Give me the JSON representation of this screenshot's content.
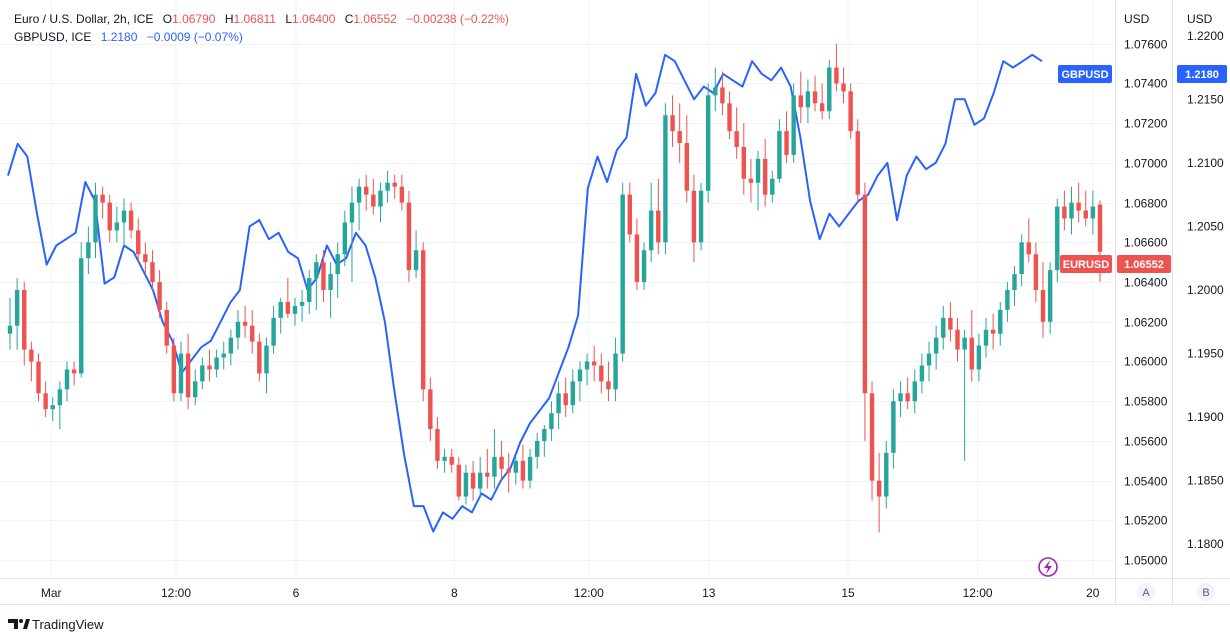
{
  "legend": {
    "main": {
      "name": "Euro / U.S. Dollar, 2h, ICE",
      "o_label": "O",
      "o": "1.06790",
      "h_label": "H",
      "h": "1.06811",
      "l_label": "L",
      "l": "1.06400",
      "c_label": "C",
      "c": "1.06552",
      "change": "−0.00238 (−0.22%)"
    },
    "compare": {
      "name": "GBPUSD, ICE",
      "value": "1.2180",
      "change": "−0.0009 (−0.07%)"
    }
  },
  "axes": {
    "left_header": "USD",
    "right_header": "USD",
    "left_ticks": [
      "1.07600",
      "1.07400",
      "1.07200",
      "1.07000",
      "1.06800",
      "1.06600",
      "1.06400",
      "1.06200",
      "1.06000",
      "1.05800",
      "1.05600",
      "1.05400",
      "1.05200",
      "1.05000"
    ],
    "right_ticks": [
      "1.2200",
      "1.2150",
      "1.2100",
      "1.2050",
      "1.2000",
      "1.1950",
      "1.1900",
      "1.1850",
      "1.1800"
    ],
    "time_ticks": [
      "Mar",
      "12:00",
      "6",
      "8",
      "12:00",
      "13",
      "15",
      "12:00",
      "20"
    ]
  },
  "tags": {
    "gbpusd_label": "GBPUSD",
    "gbpusd_value": "1.2180",
    "eurusd_label": "EURUSD",
    "eurusd_value": "1.06552"
  },
  "buttons": {
    "a": "A",
    "b": "B"
  },
  "brand": "TradingView",
  "colors": {
    "up": "#26a69a",
    "down": "#ef5350",
    "compare": "#2962ff",
    "grid": "#f0f3fa"
  },
  "chart_data": {
    "type": "candlestick",
    "timeframe": "2h",
    "series": [
      {
        "name": "EURUSD",
        "kind": "ohlc",
        "ohlc": [
          [
            1.0614,
            1.0632,
            1.0606,
            1.0618
          ],
          [
            1.0618,
            1.0642,
            1.0606,
            1.0636
          ],
          [
            1.0636,
            1.064,
            1.0598,
            1.0606
          ],
          [
            1.0606,
            1.061,
            1.059,
            1.06
          ],
          [
            1.06,
            1.0604,
            1.058,
            1.0584
          ],
          [
            1.0584,
            1.059,
            1.0572,
            1.0576
          ],
          [
            1.0576,
            1.0582,
            1.057,
            1.0578
          ],
          [
            1.0578,
            1.059,
            1.0566,
            1.0586
          ],
          [
            1.0586,
            1.06,
            1.058,
            1.0596
          ],
          [
            1.0596,
            1.06,
            1.0588,
            1.0594
          ],
          [
            1.0594,
            1.066,
            1.0592,
            1.0652
          ],
          [
            1.0652,
            1.0668,
            1.0644,
            1.066
          ],
          [
            1.066,
            1.069,
            1.0652,
            1.0684
          ],
          [
            1.0684,
            1.0688,
            1.0672,
            1.068
          ],
          [
            1.068,
            1.0684,
            1.066,
            1.0666
          ],
          [
            1.0666,
            1.0678,
            1.066,
            1.067
          ],
          [
            1.067,
            1.0682,
            1.0658,
            1.0676
          ],
          [
            1.0676,
            1.068,
            1.0662,
            1.0666
          ],
          [
            1.0666,
            1.0672,
            1.065,
            1.0654
          ],
          [
            1.0654,
            1.066,
            1.0644,
            1.065
          ],
          [
            1.065,
            1.0656,
            1.0636,
            1.064
          ],
          [
            1.064,
            1.0646,
            1.0622,
            1.0626
          ],
          [
            1.0626,
            1.063,
            1.0604,
            1.0608
          ],
          [
            1.0608,
            1.0612,
            1.058,
            1.0584
          ],
          [
            1.0584,
            1.061,
            1.058,
            1.0604
          ],
          [
            1.0604,
            1.0614,
            1.0576,
            1.0582
          ],
          [
            1.0582,
            1.0596,
            1.0578,
            1.059
          ],
          [
            1.059,
            1.0602,
            1.0586,
            1.0598
          ],
          [
            1.0598,
            1.0606,
            1.059,
            1.0596
          ],
          [
            1.0596,
            1.0606,
            1.0592,
            1.0602
          ],
          [
            1.0602,
            1.061,
            1.0596,
            1.0604
          ],
          [
            1.0604,
            1.0616,
            1.0598,
            1.0612
          ],
          [
            1.0612,
            1.0626,
            1.0606,
            1.062
          ],
          [
            1.062,
            1.0628,
            1.0612,
            1.0618
          ],
          [
            1.0618,
            1.0626,
            1.0604,
            1.061
          ],
          [
            1.061,
            1.0614,
            1.059,
            1.0594
          ],
          [
            1.0594,
            1.0612,
            1.0584,
            1.0608
          ],
          [
            1.0608,
            1.0628,
            1.0604,
            1.0622
          ],
          [
            1.0622,
            1.0632,
            1.0614,
            1.063
          ],
          [
            1.063,
            1.0642,
            1.0622,
            1.0624
          ],
          [
            1.0624,
            1.0632,
            1.0618,
            1.0628
          ],
          [
            1.0628,
            1.0636,
            1.062,
            1.063
          ],
          [
            1.063,
            1.0646,
            1.0624,
            1.0642
          ],
          [
            1.0642,
            1.0654,
            1.0626,
            1.065
          ],
          [
            1.065,
            1.0656,
            1.063,
            1.0636
          ],
          [
            1.0636,
            1.065,
            1.0622,
            1.0644
          ],
          [
            1.0644,
            1.066,
            1.0632,
            1.0654
          ],
          [
            1.0654,
            1.0676,
            1.0648,
            1.067
          ],
          [
            1.067,
            1.0688,
            1.064,
            1.068
          ],
          [
            1.068,
            1.0692,
            1.0666,
            1.0688
          ],
          [
            1.0688,
            1.0694,
            1.0676,
            1.0684
          ],
          [
            1.0684,
            1.0692,
            1.0674,
            1.0678
          ],
          [
            1.0678,
            1.069,
            1.067,
            1.0686
          ],
          [
            1.0686,
            1.0696,
            1.068,
            1.069
          ],
          [
            1.069,
            1.0694,
            1.0682,
            1.0688
          ],
          [
            1.0688,
            1.0694,
            1.0676,
            1.068
          ],
          [
            1.068,
            1.0686,
            1.064,
            1.0646
          ],
          [
            1.0646,
            1.0666,
            1.0642,
            1.0656
          ],
          [
            1.0656,
            1.066,
            1.058,
            1.0586
          ],
          [
            1.0586,
            1.0592,
            1.056,
            1.0566
          ],
          [
            1.0566,
            1.0572,
            1.0546,
            1.055
          ],
          [
            1.055,
            1.0556,
            1.0544,
            1.0552
          ],
          [
            1.0552,
            1.0556,
            1.0544,
            1.0548
          ],
          [
            1.0548,
            1.0552,
            1.053,
            1.0532
          ],
          [
            1.0532,
            1.0548,
            1.0528,
            1.0544
          ],
          [
            1.0544,
            1.055,
            1.053,
            1.0536
          ],
          [
            1.0536,
            1.0552,
            1.0532,
            1.0544
          ],
          [
            1.0544,
            1.0556,
            1.0536,
            1.0542
          ],
          [
            1.0542,
            1.0566,
            1.0536,
            1.0552
          ],
          [
            1.0552,
            1.056,
            1.054,
            1.0546
          ],
          [
            1.0546,
            1.0554,
            1.0534,
            1.0544
          ],
          [
            1.0544,
            1.0552,
            1.0538,
            1.055
          ],
          [
            1.055,
            1.0558,
            1.0536,
            1.054
          ],
          [
            1.054,
            1.0556,
            1.0536,
            1.0552
          ],
          [
            1.0552,
            1.0564,
            1.0546,
            1.056
          ],
          [
            1.056,
            1.0568,
            1.0552,
            1.0566
          ],
          [
            1.0566,
            1.058,
            1.056,
            1.0574
          ],
          [
            1.0574,
            1.059,
            1.0566,
            1.0584
          ],
          [
            1.0584,
            1.0592,
            1.0572,
            1.0578
          ],
          [
            1.0578,
            1.0596,
            1.0574,
            1.059
          ],
          [
            1.059,
            1.06,
            1.058,
            1.0596
          ],
          [
            1.0596,
            1.0604,
            1.0588,
            1.06
          ],
          [
            1.06,
            1.0608,
            1.059,
            1.0598
          ],
          [
            1.0598,
            1.0604,
            1.0584,
            1.059
          ],
          [
            1.059,
            1.06,
            1.058,
            1.0586
          ],
          [
            1.0586,
            1.0612,
            1.058,
            1.0604
          ],
          [
            1.0604,
            1.069,
            1.06,
            1.0684
          ],
          [
            1.0684,
            1.069,
            1.066,
            1.0664
          ],
          [
            1.0664,
            1.0672,
            1.0636,
            1.064
          ],
          [
            1.064,
            1.066,
            1.0636,
            1.0656
          ],
          [
            1.0656,
            1.069,
            1.065,
            1.0676
          ],
          [
            1.0676,
            1.0692,
            1.0654,
            1.066
          ],
          [
            1.066,
            1.073,
            1.0654,
            1.0724
          ],
          [
            1.0724,
            1.0734,
            1.0708,
            1.0716
          ],
          [
            1.0716,
            1.073,
            1.07,
            1.071
          ],
          [
            1.071,
            1.0724,
            1.068,
            1.0686
          ],
          [
            1.0686,
            1.0694,
            1.065,
            1.066
          ],
          [
            1.066,
            1.069,
            1.0656,
            1.0686
          ],
          [
            1.0686,
            1.074,
            1.068,
            1.0734
          ],
          [
            1.0734,
            1.0748,
            1.0726,
            1.0738
          ],
          [
            1.0738,
            1.0746,
            1.0724,
            1.073
          ],
          [
            1.073,
            1.0736,
            1.0712,
            1.0716
          ],
          [
            1.0716,
            1.0728,
            1.0702,
            1.0708
          ],
          [
            1.0708,
            1.072,
            1.0684,
            1.0692
          ],
          [
            1.0692,
            1.0702,
            1.068,
            1.069
          ],
          [
            1.069,
            1.0706,
            1.0676,
            1.0702
          ],
          [
            1.0702,
            1.0712,
            1.0678,
            1.0684
          ],
          [
            1.0684,
            1.0696,
            1.068,
            1.0692
          ],
          [
            1.0692,
            1.0722,
            1.069,
            1.0716
          ],
          [
            1.0716,
            1.0726,
            1.07,
            1.0704
          ],
          [
            1.0704,
            1.074,
            1.07,
            1.0734
          ],
          [
            1.0734,
            1.0746,
            1.072,
            1.0728
          ],
          [
            1.0728,
            1.0742,
            1.072,
            1.0736
          ],
          [
            1.0736,
            1.0744,
            1.0726,
            1.073
          ],
          [
            1.073,
            1.074,
            1.0722,
            1.0726
          ],
          [
            1.0726,
            1.0752,
            1.0722,
            1.0748
          ],
          [
            1.0748,
            1.076,
            1.0736,
            1.074
          ],
          [
            1.074,
            1.0748,
            1.073,
            1.0736
          ],
          [
            1.0736,
            1.074,
            1.0712,
            1.0716
          ],
          [
            1.0716,
            1.0722,
            1.068,
            1.0684
          ],
          [
            1.0684,
            1.069,
            1.056,
            1.0584
          ],
          [
            1.0584,
            1.059,
            1.053,
            1.054
          ],
          [
            1.054,
            1.0554,
            1.0514,
            1.0532
          ],
          [
            1.0532,
            1.056,
            1.0526,
            1.0554
          ],
          [
            1.0554,
            1.0586,
            1.0546,
            1.058
          ],
          [
            1.058,
            1.059,
            1.0572,
            1.0584
          ],
          [
            1.0584,
            1.0592,
            1.0576,
            1.058
          ],
          [
            1.058,
            1.0596,
            1.0574,
            1.059
          ],
          [
            1.059,
            1.0604,
            1.0584,
            1.0598
          ],
          [
            1.0598,
            1.061,
            1.059,
            1.0604
          ],
          [
            1.0604,
            1.0618,
            1.0596,
            1.0612
          ],
          [
            1.0612,
            1.0628,
            1.0606,
            1.0622
          ],
          [
            1.0622,
            1.063,
            1.061,
            1.0616
          ],
          [
            1.0616,
            1.0622,
            1.06,
            1.0606
          ],
          [
            1.0606,
            1.0616,
            1.055,
            1.0612
          ],
          [
            1.0612,
            1.0626,
            1.059,
            1.0596
          ],
          [
            1.0596,
            1.0614,
            1.059,
            1.0608
          ],
          [
            1.0608,
            1.0622,
            1.0602,
            1.0616
          ],
          [
            1.0616,
            1.0624,
            1.0606,
            1.0614
          ],
          [
            1.0614,
            1.063,
            1.0608,
            1.0626
          ],
          [
            1.0626,
            1.064,
            1.062,
            1.0636
          ],
          [
            1.0636,
            1.0648,
            1.0628,
            1.0644
          ],
          [
            1.0644,
            1.0664,
            1.0638,
            1.066
          ],
          [
            1.066,
            1.0672,
            1.065,
            1.0654
          ],
          [
            1.0654,
            1.066,
            1.063,
            1.0636
          ],
          [
            1.0636,
            1.065,
            1.0612,
            1.062
          ],
          [
            1.062,
            1.065,
            1.0614,
            1.0646
          ],
          [
            1.0646,
            1.0682,
            1.064,
            1.0678
          ],
          [
            1.0678,
            1.0686,
            1.0666,
            1.0672
          ],
          [
            1.0672,
            1.0688,
            1.0664,
            1.068
          ],
          [
            1.068,
            1.069,
            1.067,
            1.0676
          ],
          [
            1.0676,
            1.0686,
            1.0668,
            1.0672
          ],
          [
            1.0672,
            1.0686,
            1.0664,
            1.0678
          ],
          [
            1.0679,
            1.06811,
            1.064,
            1.06552
          ]
        ]
      },
      {
        "name": "GBPUSD",
        "kind": "line",
        "values": [
          1.209,
          1.2115,
          1.2105,
          1.206,
          1.202,
          1.2035,
          1.204,
          1.2045,
          1.2085,
          1.207,
          1.2005,
          1.201,
          1.2035,
          1.203,
          1.2015,
          1.2,
          1.1975,
          1.196,
          1.1935,
          1.1945,
          1.1955,
          1.196,
          1.1975,
          1.199,
          1.2,
          1.205,
          1.2055,
          1.204,
          1.2045,
          1.203,
          1.2025,
          1.2,
          1.201,
          1.2035,
          1.202,
          1.2025,
          1.2045,
          1.2035,
          1.201,
          1.1975,
          1.192,
          1.187,
          1.183,
          1.183,
          1.181,
          1.1825,
          1.182,
          1.183,
          1.1825,
          1.184,
          1.1835,
          1.185,
          1.186,
          1.188,
          1.1895,
          1.1905,
          1.1915,
          1.1935,
          1.1955,
          1.198,
          1.208,
          1.2105,
          1.2085,
          1.211,
          1.212,
          1.217,
          1.2145,
          1.2155,
          1.2185,
          1.218,
          1.2165,
          1.215,
          1.216,
          1.2155,
          1.217,
          1.2165,
          1.216,
          1.218,
          1.217,
          1.2165,
          1.2175,
          1.216,
          1.212,
          1.207,
          1.204,
          1.206,
          1.205,
          1.206,
          1.207,
          1.2075,
          1.209,
          1.21,
          1.2055,
          1.209,
          1.2105,
          1.2095,
          1.21,
          1.2115,
          1.215,
          1.215,
          1.213,
          1.2135,
          1.2155,
          1.218,
          1.2175,
          1.218,
          1.2185,
          1.218
        ]
      }
    ],
    "y_left_range": [
      1.0492,
      1.078
    ],
    "y_right_range": [
      1.1775,
      1.2225
    ],
    "x_labels": [
      "Mar",
      "12:00",
      "6",
      "8",
      "12:00",
      "13",
      "15",
      "12:00",
      "20"
    ],
    "grid": true
  }
}
